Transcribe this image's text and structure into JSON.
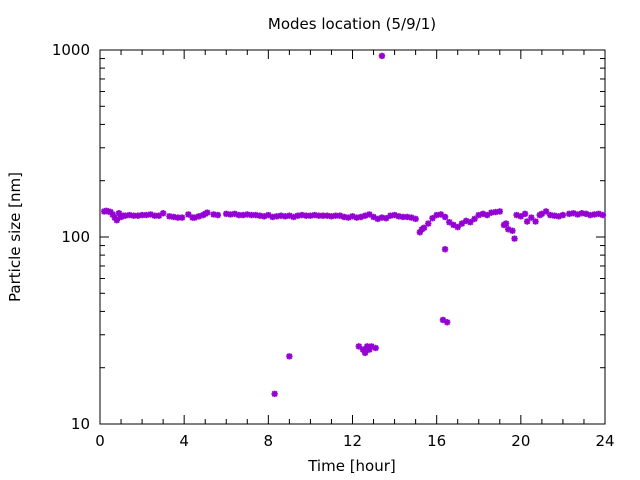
{
  "chart_data": {
    "type": "scatter",
    "title": "Modes location (5/9/1)",
    "xlabel": "Time [hour]",
    "ylabel": "Particle size [nm]",
    "xlim": [
      0,
      24
    ],
    "ylim": [
      10,
      1000
    ],
    "yscale": "log",
    "grid": false,
    "xticks": [
      "0",
      "4",
      "8",
      "12",
      "16",
      "20",
      "24"
    ],
    "yticks": [
      "10",
      "100",
      "1000"
    ],
    "marker_color": "#9400d3",
    "marker": "star",
    "series": [
      {
        "points": [
          [
            0.2,
            137
          ],
          [
            0.3,
            138
          ],
          [
            0.4,
            137
          ],
          [
            0.5,
            136
          ],
          [
            0.6,
            132
          ],
          [
            0.7,
            127
          ],
          [
            0.8,
            123
          ],
          [
            0.9,
            134
          ],
          [
            1.0,
            128
          ],
          [
            1.1,
            130
          ],
          [
            1.2,
            130
          ],
          [
            1.4,
            131
          ],
          [
            1.6,
            130
          ],
          [
            1.8,
            130
          ],
          [
            2.0,
            131
          ],
          [
            2.2,
            131
          ],
          [
            2.4,
            132
          ],
          [
            2.6,
            130
          ],
          [
            2.8,
            130
          ],
          [
            3.0,
            134
          ],
          [
            3.3,
            129
          ],
          [
            3.5,
            128
          ],
          [
            3.7,
            127
          ],
          [
            3.9,
            127
          ],
          [
            4.2,
            132
          ],
          [
            4.4,
            127
          ],
          [
            4.5,
            127
          ],
          [
            4.7,
            129
          ],
          [
            4.9,
            131
          ],
          [
            5.0,
            133
          ],
          [
            5.1,
            135
          ],
          [
            5.4,
            132
          ],
          [
            5.6,
            131
          ],
          [
            6.0,
            133
          ],
          [
            6.2,
            132
          ],
          [
            6.4,
            133
          ],
          [
            6.6,
            131
          ],
          [
            6.8,
            131
          ],
          [
            7.0,
            132
          ],
          [
            7.2,
            131
          ],
          [
            7.4,
            131
          ],
          [
            7.6,
            130
          ],
          [
            7.8,
            129
          ],
          [
            8.0,
            131
          ],
          [
            8.2,
            128
          ],
          [
            8.4,
            129
          ],
          [
            8.6,
            130
          ],
          [
            8.8,
            129
          ],
          [
            9.0,
            130
          ],
          [
            9.2,
            128
          ],
          [
            9.4,
            130
          ],
          [
            9.6,
            131
          ],
          [
            9.8,
            130
          ],
          [
            10.0,
            130
          ],
          [
            10.2,
            131
          ],
          [
            10.4,
            130
          ],
          [
            10.6,
            130
          ],
          [
            10.8,
            130
          ],
          [
            11.0,
            129
          ],
          [
            11.2,
            130
          ],
          [
            11.4,
            130
          ],
          [
            11.6,
            128
          ],
          [
            11.8,
            127
          ],
          [
            12.0,
            129
          ],
          [
            12.2,
            127
          ],
          [
            12.4,
            128
          ],
          [
            12.6,
            130
          ],
          [
            12.8,
            132
          ],
          [
            13.0,
            128
          ],
          [
            13.2,
            125
          ],
          [
            13.4,
            127
          ],
          [
            13.6,
            126
          ],
          [
            13.8,
            130
          ],
          [
            14.0,
            131
          ],
          [
            14.2,
            129
          ],
          [
            14.4,
            128
          ],
          [
            14.6,
            128
          ],
          [
            14.8,
            127
          ],
          [
            15.0,
            125
          ],
          [
            15.2,
            106
          ],
          [
            15.3,
            110
          ],
          [
            15.4,
            112
          ],
          [
            15.6,
            118
          ],
          [
            15.8,
            126
          ],
          [
            16.0,
            131
          ],
          [
            16.2,
            132
          ],
          [
            16.4,
            128
          ],
          [
            16.6,
            120
          ],
          [
            16.8,
            116
          ],
          [
            17.0,
            113
          ],
          [
            17.2,
            118
          ],
          [
            17.4,
            122
          ],
          [
            17.6,
            120
          ],
          [
            17.8,
            125
          ],
          [
            18.0,
            131
          ],
          [
            18.2,
            133
          ],
          [
            18.4,
            131
          ],
          [
            18.6,
            135
          ],
          [
            18.8,
            136
          ],
          [
            19.0,
            137
          ],
          [
            19.2,
            116
          ],
          [
            19.3,
            118
          ],
          [
            19.4,
            110
          ],
          [
            19.6,
            108
          ],
          [
            19.7,
            98
          ],
          [
            19.8,
            131
          ],
          [
            20.0,
            129
          ],
          [
            20.2,
            133
          ],
          [
            20.3,
            121
          ],
          [
            20.5,
            127
          ],
          [
            20.7,
            121
          ],
          [
            20.9,
            131
          ],
          [
            21.0,
            133
          ],
          [
            21.2,
            137
          ],
          [
            21.4,
            131
          ],
          [
            21.6,
            130
          ],
          [
            21.8,
            129
          ],
          [
            22.0,
            131
          ],
          [
            22.3,
            133
          ],
          [
            22.5,
            134
          ],
          [
            22.7,
            132
          ],
          [
            22.9,
            134
          ],
          [
            23.1,
            133
          ],
          [
            23.3,
            131
          ],
          [
            23.5,
            132
          ],
          [
            23.7,
            133
          ],
          [
            23.9,
            131
          ],
          [
            8.3,
            14.5
          ],
          [
            9.0,
            23
          ],
          [
            12.3,
            26
          ],
          [
            12.5,
            25
          ],
          [
            12.6,
            24
          ],
          [
            12.7,
            26
          ],
          [
            12.8,
            25
          ],
          [
            12.9,
            26
          ],
          [
            13.1,
            25.5
          ],
          [
            16.3,
            36
          ],
          [
            16.5,
            35
          ],
          [
            16.4,
            86
          ],
          [
            13.4,
            930
          ]
        ]
      }
    ]
  }
}
